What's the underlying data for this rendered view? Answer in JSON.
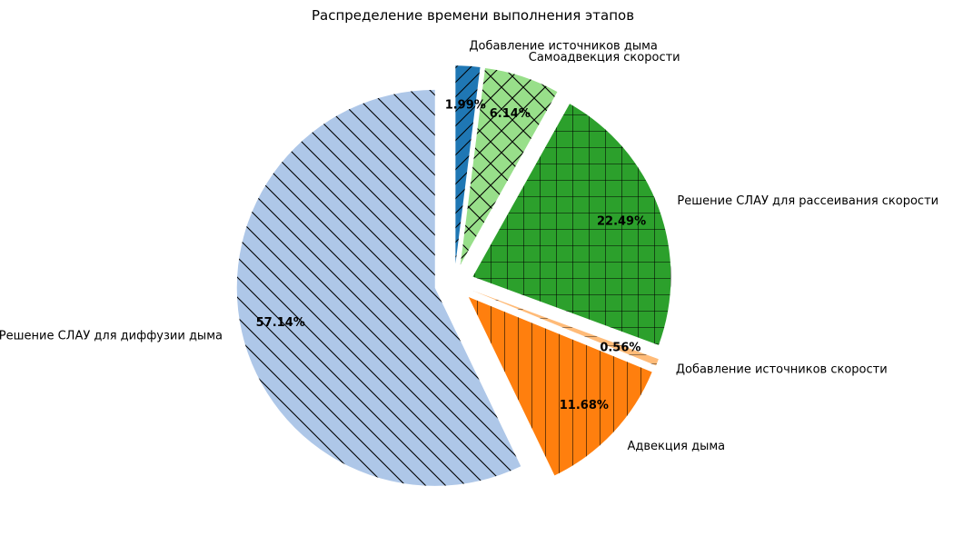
{
  "chart_data": {
    "type": "pie",
    "title": "Распределение времени выполнения этапов",
    "slices": [
      {
        "label": "Добавление источников дыма",
        "value": 1.99,
        "pct_label": "1.99%",
        "color": "#1f77b4",
        "hatch": "diagonal-forward"
      },
      {
        "label": "Самоадвекция скорости",
        "value": 6.14,
        "pct_label": "6.14%",
        "color": "#98df8a",
        "hatch": "cross-diagonal"
      },
      {
        "label": "Решение СЛАУ для рассеивания скорости",
        "value": 22.49,
        "pct_label": "22.49%",
        "color": "#2ca02c",
        "hatch": "grid"
      },
      {
        "label": "Добавление источников скорости",
        "value": 0.56,
        "pct_label": "0.56%",
        "color": "#ffbb78",
        "hatch": "horizontal"
      },
      {
        "label": "Адвекция дыма",
        "value": 11.68,
        "pct_label": "11.68%",
        "color": "#ff7f0e",
        "hatch": "vertical"
      },
      {
        "label": "Решение СЛАУ для диффузии дыма",
        "value": 57.14,
        "pct_label": "57.14%",
        "color": "#aec7e8",
        "hatch": "diagonal-back"
      }
    ],
    "start_angle_deg": 90,
    "direction": "clockwise",
    "exploded": true,
    "legend": "none"
  }
}
